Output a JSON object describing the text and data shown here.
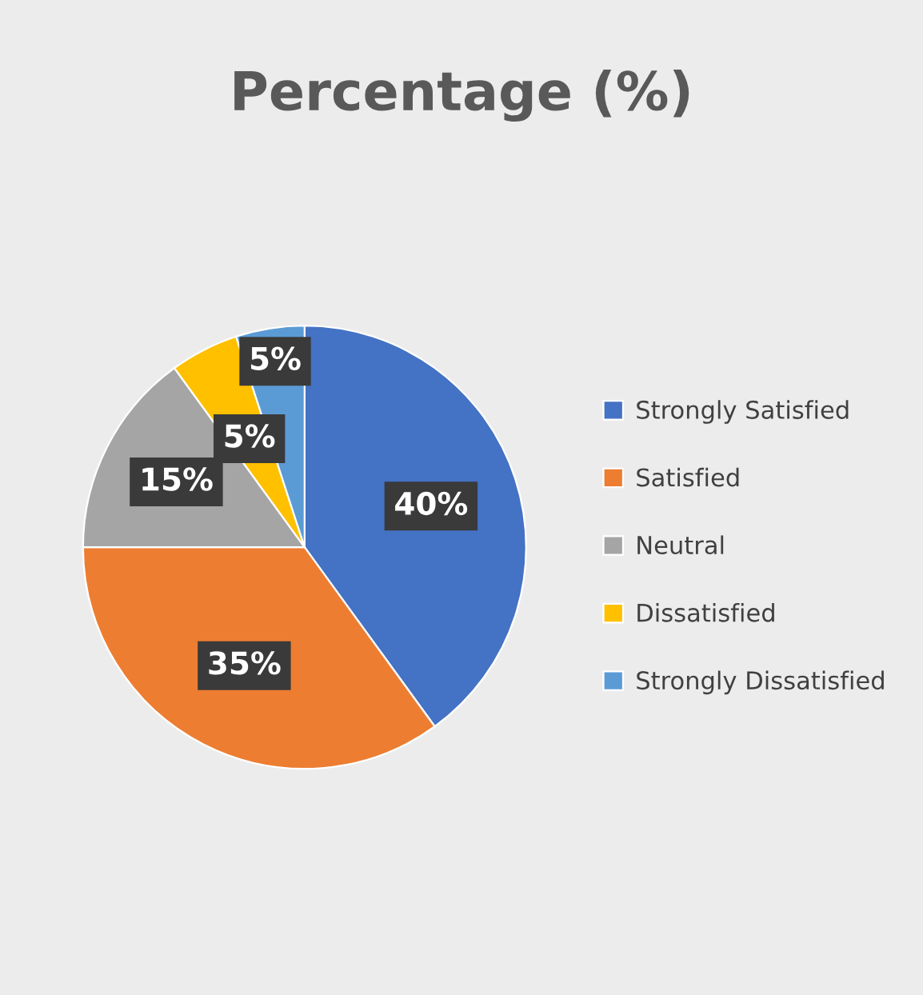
{
  "chart_data": {
    "type": "pie",
    "title": "Percentage (%)",
    "categories": [
      "Strongly Satisfied",
      "Satisfied",
      "Neutral",
      "Dissatisfied",
      "Strongly Dissatisfied"
    ],
    "values": [
      40,
      35,
      15,
      5,
      5
    ],
    "colors": [
      "#4472c4",
      "#ed7d31",
      "#a5a5a5",
      "#ffc000",
      "#5b9bd5"
    ],
    "value_labels": [
      "40%",
      "35%",
      "15%",
      "5%",
      "5%"
    ],
    "legend": "right"
  }
}
